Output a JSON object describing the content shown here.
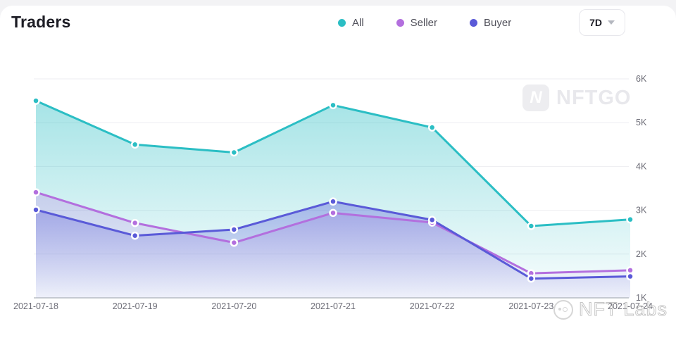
{
  "header": {
    "title": "Traders",
    "range_selector": {
      "label": "7D"
    }
  },
  "legend": [
    {
      "label": "All",
      "color": "#2bbec4"
    },
    {
      "label": "Seller",
      "color": "#b36fde"
    },
    {
      "label": "Buyer",
      "color": "#5a5ad8"
    }
  ],
  "watermarks": {
    "chart_logo_glyph": "N",
    "chart_logo_text": "NFTGO",
    "footer_logo_text": "NFT Labs"
  },
  "chart_data": {
    "type": "area",
    "title": "Traders",
    "x": [
      "2021-07-18",
      "2021-07-19",
      "2021-07-20",
      "2021-07-21",
      "2021-07-22",
      "2021-07-23",
      "2021-07-24"
    ],
    "series": [
      {
        "name": "All",
        "color": "#2bbec4",
        "values": [
          5500,
          4500,
          4320,
          5400,
          4890,
          2640,
          2790
        ]
      },
      {
        "name": "Seller",
        "color": "#b36fde",
        "values": [
          3410,
          2710,
          2260,
          2940,
          2720,
          1560,
          1630
        ]
      },
      {
        "name": "Buyer",
        "color": "#5a5ad8",
        "values": [
          3010,
          2420,
          2560,
          3200,
          2780,
          1440,
          1490
        ]
      }
    ],
    "ylim": [
      1000,
      6000
    ],
    "yticks": [
      "1K",
      "2K",
      "3K",
      "4K",
      "5K",
      "6K"
    ],
    "grid": true,
    "legend_position": "top"
  }
}
